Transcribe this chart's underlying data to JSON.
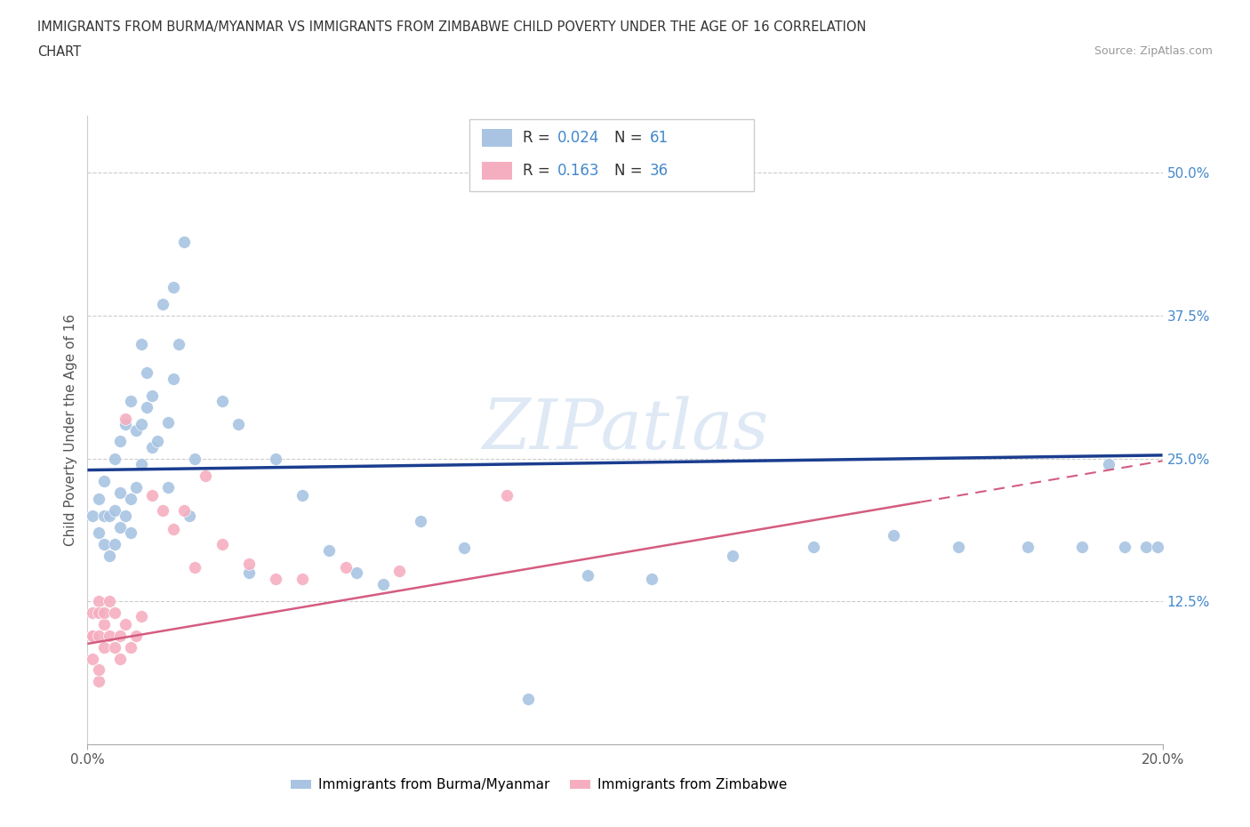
{
  "title_line1": "IMMIGRANTS FROM BURMA/MYANMAR VS IMMIGRANTS FROM ZIMBABWE CHILD POVERTY UNDER THE AGE OF 16 CORRELATION",
  "title_line2": "CHART",
  "source": "Source: ZipAtlas.com",
  "ylabel": "Child Poverty Under the Age of 16",
  "xlim": [
    0.0,
    0.2
  ],
  "ylim": [
    0.0,
    0.55
  ],
  "hlines": [
    0.125,
    0.25,
    0.375,
    0.5
  ],
  "ytick_vals": [
    0.125,
    0.25,
    0.375,
    0.5
  ],
  "ytick_labels": [
    "12.5%",
    "25.0%",
    "37.5%",
    "50.0%"
  ],
  "xtick_vals": [
    0.0,
    0.2
  ],
  "xtick_labels": [
    "0.0%",
    "20.0%"
  ],
  "R_burma": 0.024,
  "N_burma": 61,
  "R_zimbabwe": 0.163,
  "N_zimbabwe": 36,
  "color_burma": "#a8c4e2",
  "color_zimbabwe": "#f5aec0",
  "line_color_burma": "#1a3d8f",
  "line_color_zimbabwe": "#d45c80",
  "burma_line_x0": 0.0,
  "burma_line_x1": 0.2,
  "burma_line_y0": 0.24,
  "burma_line_y1": 0.253,
  "zimbabwe_line_x0": 0.0,
  "zimbabwe_line_x1": 0.2,
  "zimbabwe_line_y0": 0.088,
  "zimbabwe_line_y1": 0.248,
  "watermark": "ZIPatlas",
  "bg_color": "#ffffff",
  "grid_color": "#cccccc",
  "legend_text_color": "#4488cc",
  "legend_label_color": "#333333",
  "burma_x": [
    0.001,
    0.002,
    0.002,
    0.003,
    0.003,
    0.003,
    0.004,
    0.004,
    0.005,
    0.005,
    0.005,
    0.006,
    0.006,
    0.006,
    0.007,
    0.007,
    0.008,
    0.008,
    0.008,
    0.009,
    0.009,
    0.01,
    0.01,
    0.01,
    0.011,
    0.011,
    0.012,
    0.012,
    0.013,
    0.014,
    0.015,
    0.015,
    0.016,
    0.016,
    0.017,
    0.018,
    0.019,
    0.02,
    0.025,
    0.028,
    0.03,
    0.035,
    0.04,
    0.045,
    0.05,
    0.055,
    0.062,
    0.07,
    0.082,
    0.093,
    0.105,
    0.12,
    0.135,
    0.15,
    0.162,
    0.175,
    0.185,
    0.19,
    0.193,
    0.197,
    0.199
  ],
  "burma_y": [
    0.2,
    0.185,
    0.215,
    0.175,
    0.2,
    0.23,
    0.165,
    0.2,
    0.175,
    0.205,
    0.25,
    0.19,
    0.22,
    0.265,
    0.2,
    0.28,
    0.185,
    0.215,
    0.3,
    0.225,
    0.275,
    0.245,
    0.35,
    0.28,
    0.295,
    0.325,
    0.26,
    0.305,
    0.265,
    0.385,
    0.225,
    0.282,
    0.32,
    0.4,
    0.35,
    0.44,
    0.2,
    0.25,
    0.3,
    0.28,
    0.15,
    0.25,
    0.218,
    0.17,
    0.15,
    0.14,
    0.195,
    0.172,
    0.04,
    0.148,
    0.145,
    0.165,
    0.173,
    0.183,
    0.173,
    0.173,
    0.173,
    0.245,
    0.173,
    0.173,
    0.173
  ],
  "zimbabwe_x": [
    0.001,
    0.001,
    0.001,
    0.001,
    0.002,
    0.002,
    0.002,
    0.002,
    0.002,
    0.003,
    0.003,
    0.003,
    0.004,
    0.004,
    0.005,
    0.005,
    0.006,
    0.006,
    0.007,
    0.007,
    0.008,
    0.009,
    0.01,
    0.012,
    0.014,
    0.016,
    0.018,
    0.02,
    0.022,
    0.025,
    0.03,
    0.035,
    0.04,
    0.048,
    0.058,
    0.078
  ],
  "zimbabwe_y": [
    0.095,
    0.075,
    0.115,
    0.095,
    0.055,
    0.125,
    0.065,
    0.095,
    0.115,
    0.085,
    0.105,
    0.115,
    0.095,
    0.125,
    0.085,
    0.115,
    0.075,
    0.095,
    0.285,
    0.105,
    0.085,
    0.095,
    0.112,
    0.218,
    0.205,
    0.188,
    0.205,
    0.155,
    0.235,
    0.175,
    0.158,
    0.145,
    0.145,
    0.155,
    0.152,
    0.218
  ]
}
